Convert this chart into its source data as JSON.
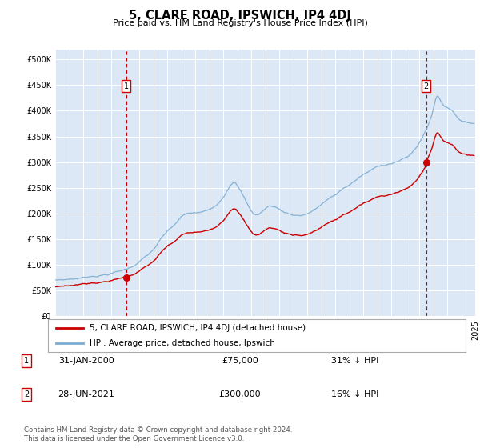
{
  "title": "5, CLARE ROAD, IPSWICH, IP4 4DJ",
  "subtitle": "Price paid vs. HM Land Registry's House Price Index (HPI)",
  "legend_line1": "5, CLARE ROAD, IPSWICH, IP4 4DJ (detached house)",
  "legend_line2": "HPI: Average price, detached house, Ipswich",
  "footer": "Contains HM Land Registry data © Crown copyright and database right 2024.\nThis data is licensed under the Open Government Licence v3.0.",
  "marker1_date": "31-JAN-2000",
  "marker1_price": "£75,000",
  "marker1_hpi": "31% ↓ HPI",
  "marker1_year": 2000.08,
  "marker2_date": "28-JUN-2021",
  "marker2_price": "£300,000",
  "marker2_hpi": "16% ↓ HPI",
  "marker2_year": 2021.5,
  "sale1_value": 75000,
  "sale2_value": 300000,
  "hpi_color": "#7aadd4",
  "price_color": "#cc0000",
  "marker_color": "#cc0000",
  "bg_color": "#dce8f5",
  "grid_color": "#ffffff",
  "ylim_max": 520000,
  "ylim_min": 0
}
